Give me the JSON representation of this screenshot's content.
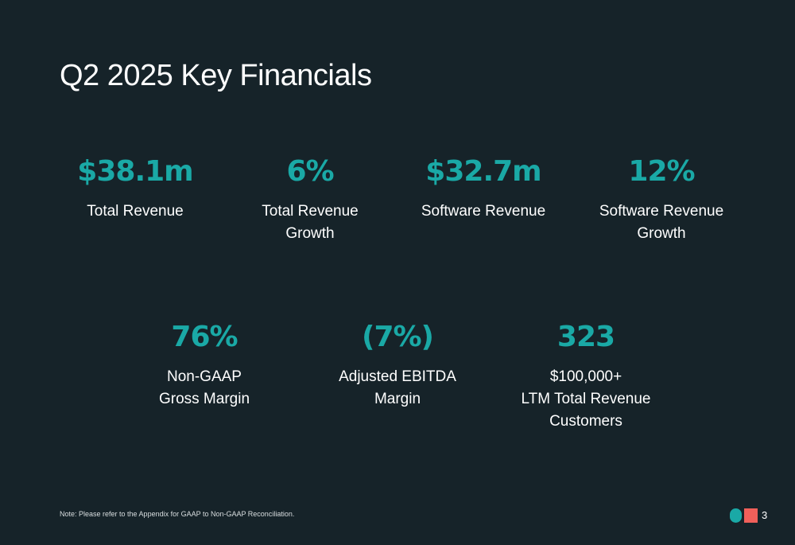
{
  "slide": {
    "title": "Q2 2025 Key Financials",
    "metrics_row1": [
      {
        "value": "$38.1m",
        "label": "Total Revenue"
      },
      {
        "value": "6%",
        "label": "Total Revenue\nGrowth"
      },
      {
        "value": "$32.7m",
        "label": "Software Revenue"
      },
      {
        "value": "12%",
        "label": "Software Revenue\nGrowth"
      }
    ],
    "metrics_row2": [
      {
        "value": "76%",
        "label": "Non-GAAP\nGross Margin"
      },
      {
        "value": "(7%)",
        "label": "Adjusted  EBITDA\nMargin"
      },
      {
        "value": "323",
        "label": "$100,000+\nLTM Total Revenue\nCustomers"
      }
    ],
    "note": "Note: Please refer to the Appendix for GAAP to Non-GAAP Reconciliation.",
    "page_number": "3"
  },
  "colors": {
    "background": "#162329",
    "accent_teal": "#1aa9a6",
    "accent_coral": "#f0605a",
    "text": "#ffffff"
  },
  "icons": {
    "logo": "brand-logo-circle-square"
  }
}
